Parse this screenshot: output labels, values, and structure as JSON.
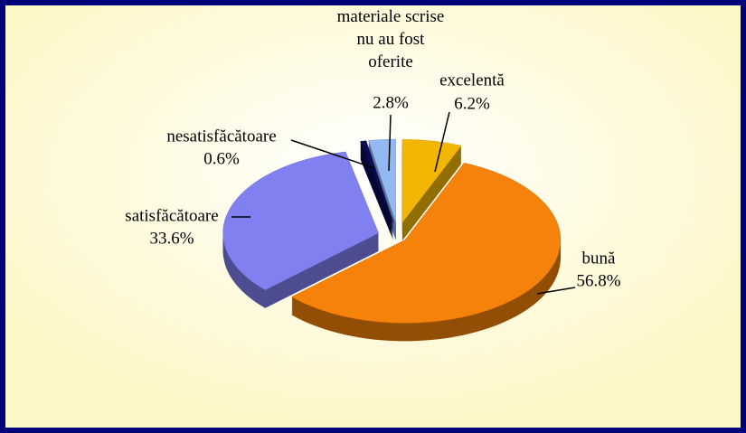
{
  "chart_data": {
    "type": "pie",
    "categories": [
      "excelentă",
      "bună",
      "satisfăcătoare",
      "nesatisfăcătoare",
      "materiale scrise nu au fost oferite"
    ],
    "values": [
      6.2,
      56.8,
      33.6,
      0.6,
      2.8
    ],
    "value_labels": [
      "6.2%",
      "56.8%",
      "33.6%",
      "0.6%",
      "2.8%"
    ],
    "colors": [
      "#f2b705",
      "#f5820a",
      "#8080f0",
      "#0b0b55",
      "#92b9f2"
    ]
  }
}
